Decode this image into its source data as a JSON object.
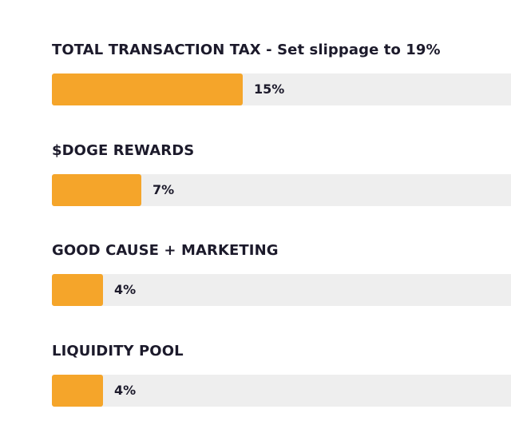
{
  "theme": {
    "bar_fill": "#f5a52a",
    "bar_track": "#eeeeee",
    "text": "#1c1a2b"
  },
  "bars": [
    {
      "title": "TOTAL TRANSACTION TAX - Set slippage to 19%",
      "value_label": "15%",
      "value": 15
    },
    {
      "title": "$DOGE REWARDS",
      "value_label": "7%",
      "value": 7
    },
    {
      "title": "GOOD CAUSE + MARKETING",
      "value_label": "4%",
      "value": 4
    },
    {
      "title": "LIQUIDITY POOL",
      "value_label": "4%",
      "value": 4
    }
  ]
}
